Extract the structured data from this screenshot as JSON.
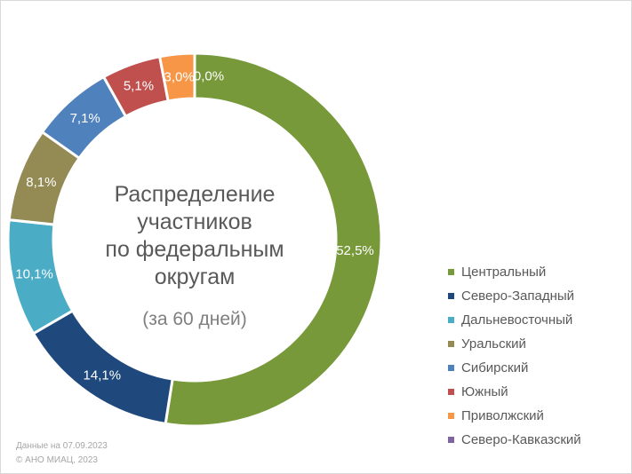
{
  "chart_data": {
    "type": "pie",
    "subtype": "donut",
    "title": "Распределение участников по федеральным округам",
    "title_lines": [
      "Распределение",
      "участников",
      "по федеральным",
      "округам"
    ],
    "subtitle": "(за 60 дней)",
    "categories": [
      "Центральный",
      "Северо-Западный",
      "Дальневосточный",
      "Уральский",
      "Сибирский",
      "Южный",
      "Приволжский",
      "Северо-Кавказский"
    ],
    "values": [
      52.5,
      14.1,
      10.1,
      8.1,
      7.1,
      5.1,
      3.0,
      0.0
    ],
    "value_labels": [
      "52,5%",
      "14,1%",
      "10,1%",
      "8,1%",
      "7,1%",
      "5,1%",
      "3,0%",
      "0,0%"
    ],
    "colors": [
      "#77993a",
      "#1f497d",
      "#4bacc6",
      "#948a54",
      "#4f81bd",
      "#c0504d",
      "#f79646",
      "#8064a2"
    ],
    "legend_position": "right"
  },
  "footer": {
    "date": "Данные на 07.09.2023",
    "copyright": "© АНО МИАЦ, 2023"
  }
}
